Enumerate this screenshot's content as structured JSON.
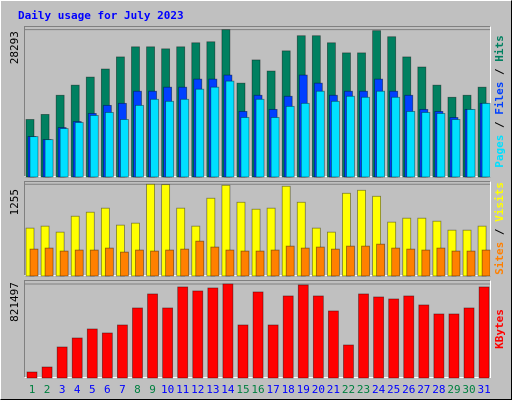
{
  "chart_data": [
    {
      "type": "bar",
      "title": "Daily usage for July 2023",
      "ylim": [
        0,
        29000
      ],
      "yticks": [
        28293
      ],
      "legend_separator": " / ",
      "series": [
        {
          "name": "Hits",
          "color": "#008060",
          "values": [
            11046,
            12015,
            15697,
            17635,
            19185,
            20736,
            23061,
            25000,
            25000,
            24611,
            25000,
            25774,
            25968,
            28293,
            18022,
            22480,
            20348,
            24224,
            27131,
            27131,
            25774,
            23836,
            23836,
            28100,
            26937,
            23061,
            21123,
            17635,
            15310,
            15697,
            17247
          ]
        },
        {
          "name": "Files",
          "color": "#0040ff",
          "values": [
            7790,
            7200,
            9496,
            10659,
            12209,
            13760,
            14147,
            16473,
            16473,
            17248,
            17248,
            18798,
            18798,
            19574,
            12597,
            15698,
            12985,
            15504,
            19574,
            18023,
            15698,
            16473,
            16473,
            18798,
            16473,
            15698,
            12985,
            12597,
            11434,
            12985,
            14147
          ]
        },
        {
          "name": "Pages",
          "color": "#00e0ff",
          "values": [
            7752,
            7171,
            9302,
            10465,
            11822,
            12403,
            11047,
            13760,
            14923,
            14535,
            14923,
            16861,
            17248,
            18411,
            11434,
            14923,
            11434,
            13566,
            14147,
            16473,
            14535,
            15504,
            15310,
            16473,
            15310,
            12597,
            12403,
            12209,
            11047,
            12985,
            14147
          ]
        }
      ]
    },
    {
      "type": "bar",
      "ylim": [
        0,
        1300
      ],
      "yticks": [
        1255
      ],
      "legend_separator": " / ",
      "series": [
        {
          "name": "Visits",
          "color": "#ffff00",
          "values": [
            655,
            682,
            600,
            818,
            873,
            928,
            696,
            723,
            1255,
            1250,
            928,
            682,
            1064,
            1241,
            1009,
            914,
            928,
            1228,
            1009,
            655,
            600,
            1132,
            1173,
            1091,
            737,
            791,
            791,
            750,
            627,
            627,
            682
          ]
        },
        {
          "name": "Sites",
          "color": "#ff8000",
          "values": [
            368,
            382,
            341,
            355,
            355,
            382,
            327,
            355,
            341,
            355,
            368,
            477,
            396,
            355,
            341,
            341,
            355,
            409,
            382,
            396,
            368,
            409,
            409,
            436,
            382,
            368,
            355,
            382,
            341,
            341,
            355
          ]
        }
      ]
    },
    {
      "type": "bar",
      "ylim": [
        0,
        856000
      ],
      "yticks": [
        821497
      ],
      "categories": [
        "1",
        "2",
        "3",
        "4",
        "5",
        "6",
        "7",
        "8",
        "9",
        "10",
        "11",
        "12",
        "13",
        "14",
        "15",
        "16",
        "17",
        "18",
        "19",
        "20",
        "21",
        "22",
        "23",
        "24",
        "25",
        "26",
        "27",
        "28",
        "29",
        "30",
        "31"
      ],
      "category_colors": [
        "#008040",
        "#008040",
        "#0000ff",
        "#0000ff",
        "#0000ff",
        "#0000ff",
        "#0000ff",
        "#008040",
        "#008040",
        "#0000ff",
        "#0000ff",
        "#0000ff",
        "#0000ff",
        "#0000ff",
        "#008040",
        "#008040",
        "#0000ff",
        "#0000ff",
        "#0000ff",
        "#0000ff",
        "#0000ff",
        "#008040",
        "#008040",
        "#0000ff",
        "#0000ff",
        "#0000ff",
        "#0000ff",
        "#0000ff",
        "#008040",
        "#008040",
        "#0000ff"
      ],
      "series": [
        {
          "name": "KBytes",
          "color": "#ff0000",
          "values": [
            52434,
            96129,
            270909,
            349560,
            428211,
            393255,
            463167,
            611730,
            734076,
            611730,
            795249,
            760293,
            786510,
            821497,
            463167,
            751554,
            463167,
            716598,
            812727,
            716598,
            585513,
            288387,
            734076,
            707859,
            690381,
            716598,
            637947,
            559296,
            559296,
            611730,
            795249
          ]
        }
      ]
    }
  ]
}
